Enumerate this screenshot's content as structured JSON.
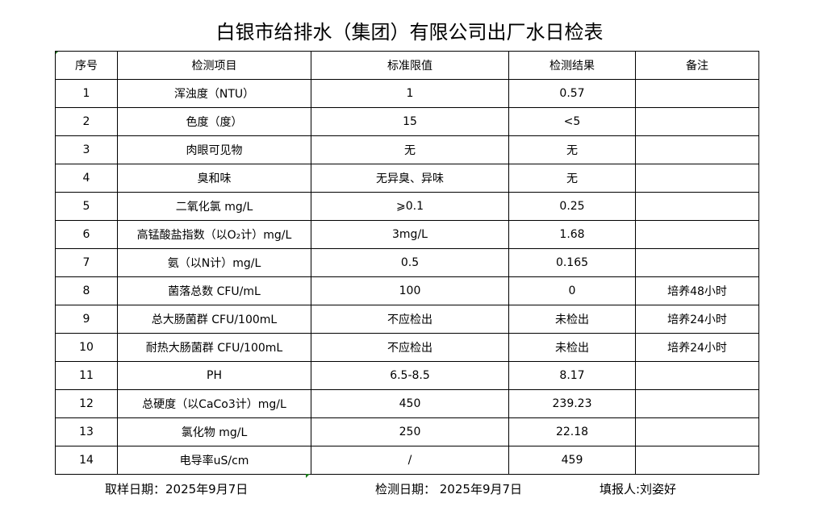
{
  "title": "白银市给排水（集团）有限公司出厂水日检表",
  "headers": [
    "序号",
    "检测项目",
    "标准限值",
    "检测结果",
    "备注"
  ],
  "rows": [
    [
      "1",
      "浑浊度（NTU）",
      "1",
      "0.57",
      ""
    ],
    [
      "2",
      "色度（度）",
      "15",
      "<5",
      ""
    ],
    [
      "3",
      "肉眼可见物",
      "无",
      "无",
      ""
    ],
    [
      "4",
      "臭和味",
      "无异臭、异味",
      "无",
      ""
    ],
    [
      "5",
      "二氧化氯 mg/L",
      "⩾0.1",
      "0.25",
      ""
    ],
    [
      "6",
      "高锰酸盐指数（以O₂计）mg/L",
      "3mg/L",
      "1.68",
      ""
    ],
    [
      "7",
      "氨（以N计）mg/L",
      "0.5",
      "0.165",
      ""
    ],
    [
      "8",
      "菌落总数 CFU/mL",
      "100",
      "0",
      "培养48小时"
    ],
    [
      "9",
      "总大肠菌群 CFU/100mL",
      "不应检出",
      "未检出",
      "培养24小时"
    ],
    [
      "10",
      "耐热大肠菌群 CFU/100mL",
      "不应检出",
      "未检出",
      "培养24小时"
    ],
    [
      "11",
      "PH",
      "6.5-8.5",
      "8.17",
      ""
    ],
    [
      "12",
      "总硬度（以CaCo3计）mg/L",
      "450",
      "239.23",
      ""
    ],
    [
      "13",
      "氯化物 mg/L",
      "250",
      "22.18",
      ""
    ],
    [
      "14",
      "电导率uS/cm",
      "/",
      "459",
      ""
    ]
  ],
  "footer": {
    "sampling_date": "取样日期：2025年9月7日",
    "test_date": "检测日期： 2025年9月7日",
    "reporter": "填报人:刘姿好"
  }
}
